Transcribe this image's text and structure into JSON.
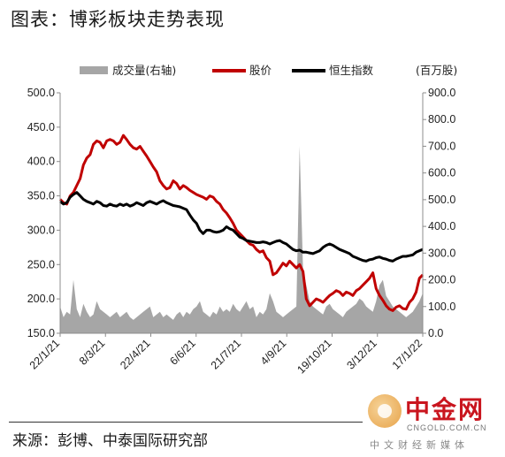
{
  "title": "图表：博彩板块走势表现",
  "source": "来源：彭博、中泰国际研究部",
  "logo": {
    "name_cn": "中金网",
    "domain": "CNGOLD.COM.CN",
    "slogan": "中文财经新媒体"
  },
  "chart_data": {
    "type": "line",
    "legend": [
      {
        "label": "成交量(右轴)",
        "color": "#a6a6a6",
        "kind": "area"
      },
      {
        "label": "股价",
        "color": "#c00000",
        "kind": "line"
      },
      {
        "label": "恒生指数",
        "color": "#000000",
        "kind": "line"
      }
    ],
    "right_unit_label": "(百万股)",
    "left_axis": {
      "min": 150,
      "max": 500,
      "ticks": [
        "150.0",
        "200.0",
        "250.0",
        "300.0",
        "350.0",
        "400.0",
        "450.0",
        "500.0"
      ]
    },
    "right_axis": {
      "min": 0,
      "max": 900,
      "ticks": [
        "0.0",
        "100.0",
        "200.0",
        "300.0",
        "400.0",
        "500.0",
        "600.0",
        "700.0",
        "800.0",
        "900.0"
      ]
    },
    "x_ticks": [
      "22/1/21",
      "8/3/21",
      "22/4/21",
      "6/6/21",
      "21/7/21",
      "4/9/21",
      "19/10/21",
      "3/12/21",
      "17/1/22"
    ],
    "grid": false,
    "series": [
      {
        "name": "股价",
        "color": "#c00000",
        "axis": "left",
        "values": [
          345,
          340,
          338,
          350,
          355,
          365,
          375,
          395,
          405,
          410,
          425,
          430,
          428,
          420,
          430,
          432,
          430,
          425,
          428,
          438,
          432,
          425,
          420,
          418,
          422,
          415,
          408,
          400,
          392,
          385,
          372,
          365,
          360,
          362,
          372,
          368,
          360,
          365,
          362,
          358,
          355,
          352,
          350,
          348,
          345,
          350,
          348,
          342,
          338,
          330,
          325,
          318,
          310,
          300,
          295,
          290,
          285,
          280,
          278,
          272,
          268,
          270,
          260,
          255,
          235,
          238,
          245,
          252,
          248,
          255,
          250,
          245,
          250,
          240,
          200,
          190,
          195,
          200,
          198,
          195,
          200,
          205,
          208,
          212,
          210,
          205,
          210,
          208,
          205,
          212,
          215,
          220,
          225,
          230,
          238,
          215,
          205,
          198,
          190,
          185,
          183,
          188,
          190,
          186,
          185,
          195,
          200,
          210,
          230,
          235
        ]
      },
      {
        "name": "恒生指数",
        "color": "#000000",
        "axis": "left",
        "values": [
          342,
          338,
          340,
          348,
          352,
          355,
          350,
          345,
          342,
          340,
          338,
          342,
          340,
          336,
          335,
          338,
          336,
          335,
          338,
          336,
          338,
          335,
          337,
          340,
          338,
          336,
          340,
          342,
          340,
          338,
          341,
          343,
          340,
          338,
          336,
          335,
          334,
          332,
          330,
          322,
          315,
          310,
          300,
          295,
          300,
          300,
          298,
          297,
          298,
          300,
          305,
          302,
          300,
          295,
          290,
          288,
          285,
          284,
          283,
          282,
          282,
          283,
          282,
          280,
          282,
          284,
          285,
          282,
          280,
          276,
          272,
          270,
          271,
          268,
          268,
          267,
          266,
          268,
          270,
          275,
          278,
          280,
          278,
          275,
          272,
          270,
          268,
          266,
          262,
          260,
          258,
          256,
          255,
          257,
          258,
          260,
          261,
          259,
          258,
          256,
          255,
          258,
          260,
          262,
          262,
          263,
          264,
          268,
          270,
          272
        ]
      },
      {
        "name": "成交量(右轴)",
        "color": "#a6a6a6",
        "axis": "right",
        "values": [
          100,
          60,
          80,
          70,
          200,
          90,
          60,
          110,
          80,
          60,
          70,
          120,
          90,
          80,
          70,
          60,
          70,
          80,
          60,
          70,
          80,
          60,
          50,
          60,
          70,
          80,
          90,
          100,
          60,
          70,
          80,
          60,
          70,
          60,
          50,
          70,
          80,
          60,
          80,
          70,
          90,
          100,
          120,
          80,
          70,
          60,
          80,
          70,
          100,
          80,
          90,
          80,
          110,
          90,
          80,
          100,
          120,
          90,
          100,
          60,
          80,
          70,
          90,
          150,
          120,
          80,
          70,
          60,
          70,
          80,
          90,
          100,
          700,
          240,
          180,
          120,
          100,
          90,
          80,
          70,
          100,
          110,
          90,
          80,
          70,
          60,
          80,
          90,
          100,
          110,
          130,
          120,
          100,
          90,
          80,
          120,
          180,
          200,
          140,
          120,
          100,
          90,
          80,
          70,
          60,
          70,
          80,
          100,
          120,
          150
        ]
      }
    ]
  }
}
